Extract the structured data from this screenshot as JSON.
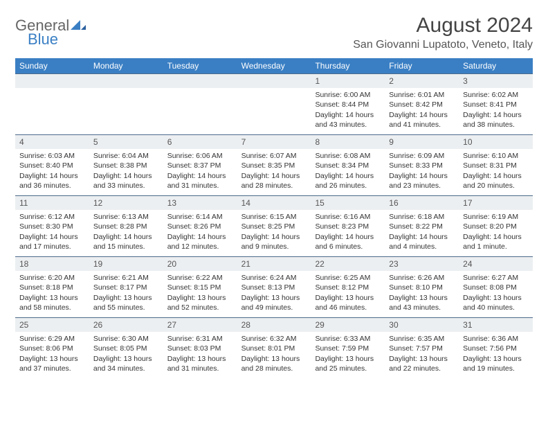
{
  "logo": {
    "part1": "General",
    "part2": "Blue"
  },
  "title": "August 2024",
  "location": "San Giovanni Lupatoto, Veneto, Italy",
  "weekdays": [
    "Sunday",
    "Monday",
    "Tuesday",
    "Wednesday",
    "Thursday",
    "Friday",
    "Saturday"
  ],
  "colors": {
    "header_bar": "#3a7fc4",
    "day_num_bg": "#eceff1",
    "day_border": "#4a6a8a",
    "text": "#333333",
    "logo_blue": "#3a7fc4"
  },
  "weeks": [
    [
      {
        "num": "",
        "empty": true
      },
      {
        "num": "",
        "empty": true
      },
      {
        "num": "",
        "empty": true
      },
      {
        "num": "",
        "empty": true
      },
      {
        "num": "1",
        "sunrise": "Sunrise: 6:00 AM",
        "sunset": "Sunset: 8:44 PM",
        "daylight": "Daylight: 14 hours and 43 minutes."
      },
      {
        "num": "2",
        "sunrise": "Sunrise: 6:01 AM",
        "sunset": "Sunset: 8:42 PM",
        "daylight": "Daylight: 14 hours and 41 minutes."
      },
      {
        "num": "3",
        "sunrise": "Sunrise: 6:02 AM",
        "sunset": "Sunset: 8:41 PM",
        "daylight": "Daylight: 14 hours and 38 minutes."
      }
    ],
    [
      {
        "num": "4",
        "sunrise": "Sunrise: 6:03 AM",
        "sunset": "Sunset: 8:40 PM",
        "daylight": "Daylight: 14 hours and 36 minutes."
      },
      {
        "num": "5",
        "sunrise": "Sunrise: 6:04 AM",
        "sunset": "Sunset: 8:38 PM",
        "daylight": "Daylight: 14 hours and 33 minutes."
      },
      {
        "num": "6",
        "sunrise": "Sunrise: 6:06 AM",
        "sunset": "Sunset: 8:37 PM",
        "daylight": "Daylight: 14 hours and 31 minutes."
      },
      {
        "num": "7",
        "sunrise": "Sunrise: 6:07 AM",
        "sunset": "Sunset: 8:35 PM",
        "daylight": "Daylight: 14 hours and 28 minutes."
      },
      {
        "num": "8",
        "sunrise": "Sunrise: 6:08 AM",
        "sunset": "Sunset: 8:34 PM",
        "daylight": "Daylight: 14 hours and 26 minutes."
      },
      {
        "num": "9",
        "sunrise": "Sunrise: 6:09 AM",
        "sunset": "Sunset: 8:33 PM",
        "daylight": "Daylight: 14 hours and 23 minutes."
      },
      {
        "num": "10",
        "sunrise": "Sunrise: 6:10 AM",
        "sunset": "Sunset: 8:31 PM",
        "daylight": "Daylight: 14 hours and 20 minutes."
      }
    ],
    [
      {
        "num": "11",
        "sunrise": "Sunrise: 6:12 AM",
        "sunset": "Sunset: 8:30 PM",
        "daylight": "Daylight: 14 hours and 17 minutes."
      },
      {
        "num": "12",
        "sunrise": "Sunrise: 6:13 AM",
        "sunset": "Sunset: 8:28 PM",
        "daylight": "Daylight: 14 hours and 15 minutes."
      },
      {
        "num": "13",
        "sunrise": "Sunrise: 6:14 AM",
        "sunset": "Sunset: 8:26 PM",
        "daylight": "Daylight: 14 hours and 12 minutes."
      },
      {
        "num": "14",
        "sunrise": "Sunrise: 6:15 AM",
        "sunset": "Sunset: 8:25 PM",
        "daylight": "Daylight: 14 hours and 9 minutes."
      },
      {
        "num": "15",
        "sunrise": "Sunrise: 6:16 AM",
        "sunset": "Sunset: 8:23 PM",
        "daylight": "Daylight: 14 hours and 6 minutes."
      },
      {
        "num": "16",
        "sunrise": "Sunrise: 6:18 AM",
        "sunset": "Sunset: 8:22 PM",
        "daylight": "Daylight: 14 hours and 4 minutes."
      },
      {
        "num": "17",
        "sunrise": "Sunrise: 6:19 AM",
        "sunset": "Sunset: 8:20 PM",
        "daylight": "Daylight: 14 hours and 1 minute."
      }
    ],
    [
      {
        "num": "18",
        "sunrise": "Sunrise: 6:20 AM",
        "sunset": "Sunset: 8:18 PM",
        "daylight": "Daylight: 13 hours and 58 minutes."
      },
      {
        "num": "19",
        "sunrise": "Sunrise: 6:21 AM",
        "sunset": "Sunset: 8:17 PM",
        "daylight": "Daylight: 13 hours and 55 minutes."
      },
      {
        "num": "20",
        "sunrise": "Sunrise: 6:22 AM",
        "sunset": "Sunset: 8:15 PM",
        "daylight": "Daylight: 13 hours and 52 minutes."
      },
      {
        "num": "21",
        "sunrise": "Sunrise: 6:24 AM",
        "sunset": "Sunset: 8:13 PM",
        "daylight": "Daylight: 13 hours and 49 minutes."
      },
      {
        "num": "22",
        "sunrise": "Sunrise: 6:25 AM",
        "sunset": "Sunset: 8:12 PM",
        "daylight": "Daylight: 13 hours and 46 minutes."
      },
      {
        "num": "23",
        "sunrise": "Sunrise: 6:26 AM",
        "sunset": "Sunset: 8:10 PM",
        "daylight": "Daylight: 13 hours and 43 minutes."
      },
      {
        "num": "24",
        "sunrise": "Sunrise: 6:27 AM",
        "sunset": "Sunset: 8:08 PM",
        "daylight": "Daylight: 13 hours and 40 minutes."
      }
    ],
    [
      {
        "num": "25",
        "sunrise": "Sunrise: 6:29 AM",
        "sunset": "Sunset: 8:06 PM",
        "daylight": "Daylight: 13 hours and 37 minutes."
      },
      {
        "num": "26",
        "sunrise": "Sunrise: 6:30 AM",
        "sunset": "Sunset: 8:05 PM",
        "daylight": "Daylight: 13 hours and 34 minutes."
      },
      {
        "num": "27",
        "sunrise": "Sunrise: 6:31 AM",
        "sunset": "Sunset: 8:03 PM",
        "daylight": "Daylight: 13 hours and 31 minutes."
      },
      {
        "num": "28",
        "sunrise": "Sunrise: 6:32 AM",
        "sunset": "Sunset: 8:01 PM",
        "daylight": "Daylight: 13 hours and 28 minutes."
      },
      {
        "num": "29",
        "sunrise": "Sunrise: 6:33 AM",
        "sunset": "Sunset: 7:59 PM",
        "daylight": "Daylight: 13 hours and 25 minutes."
      },
      {
        "num": "30",
        "sunrise": "Sunrise: 6:35 AM",
        "sunset": "Sunset: 7:57 PM",
        "daylight": "Daylight: 13 hours and 22 minutes."
      },
      {
        "num": "31",
        "sunrise": "Sunrise: 6:36 AM",
        "sunset": "Sunset: 7:56 PM",
        "daylight": "Daylight: 13 hours and 19 minutes."
      }
    ]
  ]
}
